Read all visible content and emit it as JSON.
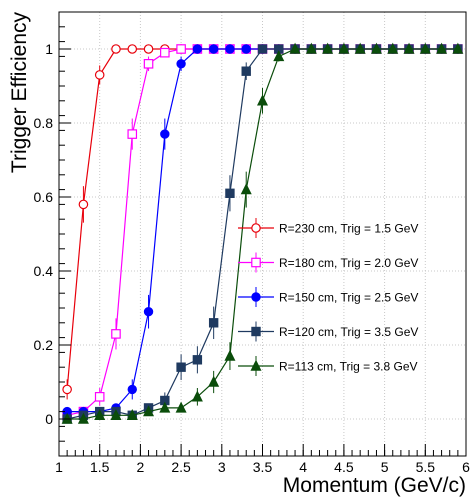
{
  "chart_data": {
    "type": "line",
    "title": "",
    "xlabel": "Momentum (GeV/c)",
    "ylabel": "Trigger Efficiency",
    "xlim": [
      1,
      6
    ],
    "ylim": [
      -0.1,
      1.1
    ],
    "x_ticks": [
      "1",
      "1.5",
      "2",
      "2.5",
      "3",
      "3.5",
      "4",
      "4.5",
      "5",
      "5.5",
      "6"
    ],
    "y_ticks": [
      "0",
      "0.2",
      "0.4",
      "0.6",
      "0.8",
      "1"
    ],
    "grid": true,
    "legend_position": "center-right",
    "series": [
      {
        "name": "R=230 cm, Trig = 1.5 GeV",
        "color": "#e8000b",
        "marker": "open-circle",
        "x": [
          1.1,
          1.3,
          1.5,
          1.7,
          1.9,
          2.1,
          2.3,
          2.5,
          2.7,
          2.9,
          3.1,
          3.3,
          3.5,
          3.7,
          3.9,
          4.1,
          4.3,
          4.5,
          4.7,
          4.9,
          5.1,
          5.3,
          5.5,
          5.7,
          5.9
        ],
        "y": [
          0.08,
          0.58,
          0.93,
          1.0,
          1.0,
          1.0,
          1.0,
          1.0,
          1.0,
          1.0,
          1.0,
          1.0,
          1.0,
          1.0,
          1.0,
          1.0,
          1.0,
          1.0,
          1.0,
          1.0,
          1.0,
          1.0,
          1.0,
          1.0,
          1.0
        ]
      },
      {
        "name": "R=180 cm, Trig = 2.0 GeV",
        "color": "#ff00ff",
        "marker": "open-square",
        "x": [
          1.1,
          1.3,
          1.5,
          1.7,
          1.9,
          2.1,
          2.3,
          2.5,
          2.7,
          2.9,
          3.1,
          3.3,
          3.5,
          3.7,
          3.9,
          4.1,
          4.3,
          4.5,
          4.7,
          4.9,
          5.1,
          5.3,
          5.5,
          5.7,
          5.9
        ],
        "y": [
          0.01,
          0.02,
          0.06,
          0.23,
          0.77,
          0.96,
          0.99,
          1.0,
          1.0,
          1.0,
          1.0,
          1.0,
          1.0,
          1.0,
          1.0,
          1.0,
          1.0,
          1.0,
          1.0,
          1.0,
          1.0,
          1.0,
          1.0,
          1.0,
          1.0
        ]
      },
      {
        "name": "R=150 cm, Trig = 2.5 GeV",
        "color": "#0000ff",
        "marker": "filled-circle",
        "x": [
          1.1,
          1.3,
          1.5,
          1.7,
          1.9,
          2.1,
          2.3,
          2.5,
          2.7,
          2.9,
          3.1,
          3.3,
          3.5,
          3.7,
          3.9,
          4.1,
          4.3,
          4.5,
          4.7,
          4.9,
          5.1,
          5.3,
          5.5,
          5.7,
          5.9
        ],
        "y": [
          0.02,
          0.02,
          0.02,
          0.03,
          0.08,
          0.29,
          0.77,
          0.96,
          1.0,
          1.0,
          1.0,
          1.0,
          1.0,
          1.0,
          1.0,
          1.0,
          1.0,
          1.0,
          1.0,
          1.0,
          1.0,
          1.0,
          1.0,
          1.0,
          1.0
        ]
      },
      {
        "name": "R=120 cm, Trig = 3.5 GeV",
        "color": "#1f3a60",
        "marker": "filled-square",
        "x": [
          1.1,
          1.3,
          1.5,
          1.7,
          1.9,
          2.1,
          2.3,
          2.5,
          2.7,
          2.9,
          3.1,
          3.3,
          3.5,
          3.7,
          3.9,
          4.1,
          4.3,
          4.5,
          4.7,
          4.9,
          5.1,
          5.3,
          5.5,
          5.7,
          5.9
        ],
        "y": [
          0.0,
          0.01,
          0.02,
          0.02,
          0.01,
          0.03,
          0.05,
          0.14,
          0.16,
          0.26,
          0.61,
          0.94,
          1.0,
          1.0,
          1.0,
          1.0,
          1.0,
          1.0,
          1.0,
          1.0,
          1.0,
          1.0,
          1.0,
          1.0,
          1.0
        ]
      },
      {
        "name": "R=113 cm, Trig = 3.8 GeV",
        "color": "#0b4d0b",
        "marker": "filled-triangle",
        "x": [
          1.1,
          1.3,
          1.5,
          1.7,
          1.9,
          2.1,
          2.3,
          2.5,
          2.7,
          2.9,
          3.1,
          3.3,
          3.5,
          3.7,
          3.9,
          4.1,
          4.3,
          4.5,
          4.7,
          4.9,
          5.1,
          5.3,
          5.5,
          5.7,
          5.9
        ],
        "y": [
          0.0,
          0.0,
          0.01,
          0.01,
          0.01,
          0.02,
          0.03,
          0.03,
          0.06,
          0.1,
          0.17,
          0.62,
          0.86,
          0.98,
          1.0,
          1.0,
          1.0,
          1.0,
          1.0,
          1.0,
          1.0,
          1.0,
          1.0,
          1.0,
          1.0
        ]
      }
    ]
  }
}
